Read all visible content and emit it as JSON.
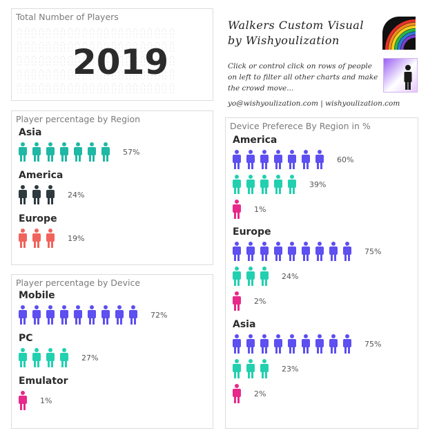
{
  "total_card": {
    "title": "Total Number of Players",
    "value": "2019"
  },
  "walkers": {
    "title_line1": "Walkers Custom Visual",
    "title_line2": "by Wishyoulization",
    "description": "Click or control click on rows of people on left to filter all other charts and make the crowd move...",
    "contact": "yo@wishyoulization.com | wishyoulization.com",
    "icon_rainbow": "rainbow-icon",
    "icon_person": "person-icon"
  },
  "colors": {
    "teal": "#1fb8a5",
    "dark": "#2f3a3f",
    "coral": "#f0645c",
    "purple": "#5d4ff0",
    "mint": "#22d0b0",
    "pink": "#e8288a",
    "rainbow": [
      "#e8322a",
      "#f58b1f",
      "#f4d01c",
      "#27b74a",
      "#2f78d9",
      "#7d3fc9"
    ]
  },
  "region_card": {
    "title": "Player percentage by Region",
    "groups": [
      {
        "label": "Asia",
        "icons": 7,
        "color": "teal",
        "pct": "57%"
      },
      {
        "label": "America",
        "icons": 3,
        "color": "dark",
        "pct": "24%"
      },
      {
        "label": "Europe",
        "icons": 3,
        "color": "coral",
        "pct": "19%"
      }
    ]
  },
  "device_card": {
    "title": "Player percentage by Device",
    "groups": [
      {
        "label": "Mobile",
        "icons": 9,
        "color": "purple",
        "pct": "72%"
      },
      {
        "label": "PC",
        "icons": 4,
        "color": "mint",
        "pct": "27%"
      },
      {
        "label": "Emulator",
        "icons": 1,
        "color": "pink",
        "pct": "1%"
      }
    ]
  },
  "pref_card": {
    "title": "Device Preferece By Region in %",
    "regions": [
      {
        "label": "America",
        "rows": [
          {
            "icons": 7,
            "color": "purple",
            "pct": "60%"
          },
          {
            "icons": 5,
            "color": "mint",
            "pct": "39%"
          },
          {
            "icons": 1,
            "color": "pink",
            "pct": "1%"
          }
        ]
      },
      {
        "label": "Europe",
        "rows": [
          {
            "icons": 9,
            "color": "purple",
            "pct": "75%"
          },
          {
            "icons": 3,
            "color": "mint",
            "pct": "24%"
          },
          {
            "icons": 1,
            "color": "pink",
            "pct": "2%"
          }
        ]
      },
      {
        "label": "Asia",
        "rows": [
          {
            "icons": 9,
            "color": "purple",
            "pct": "75%"
          },
          {
            "icons": 3,
            "color": "mint",
            "pct": "23%"
          },
          {
            "icons": 1,
            "color": "pink",
            "pct": "2%"
          }
        ]
      }
    ]
  }
}
